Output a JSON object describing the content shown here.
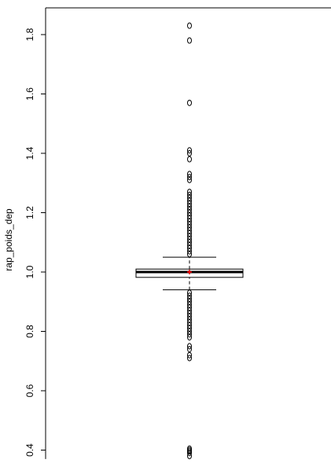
{
  "chart_data": {
    "type": "box",
    "ylabel": "rap_poids_dep",
    "ylim": [
      0.37,
      1.88
    ],
    "y_ticks": [
      0.4,
      0.6,
      0.8,
      1.0,
      1.2,
      1.4,
      1.6,
      1.8
    ],
    "y_tick_labels": [
      "0.4",
      "0.6",
      "0.8",
      "1.0",
      "1.2",
      "1.4",
      "1.6",
      "1.8"
    ],
    "box": {
      "whisker_low": 0.94,
      "q1": 0.982,
      "median": 1.0,
      "q3": 1.01,
      "whisker_high": 1.05,
      "mean": 1.0
    },
    "outliers": [
      0.38,
      0.39,
      0.395,
      0.4,
      0.405,
      0.71,
      0.72,
      0.74,
      0.75,
      0.78,
      0.79,
      0.8,
      0.81,
      0.82,
      0.83,
      0.84,
      0.85,
      0.86,
      0.87,
      0.88,
      0.89,
      0.9,
      0.91,
      0.92,
      0.93,
      1.06,
      1.07,
      1.08,
      1.09,
      1.1,
      1.11,
      1.12,
      1.13,
      1.14,
      1.15,
      1.16,
      1.17,
      1.18,
      1.19,
      1.2,
      1.21,
      1.22,
      1.23,
      1.24,
      1.25,
      1.26,
      1.27,
      1.31,
      1.32,
      1.33,
      1.38,
      1.4,
      1.41,
      1.57,
      1.78,
      1.83
    ],
    "colors": {
      "box": "#000000",
      "mean_marker": "#ff0000",
      "median_line": "#000000"
    }
  }
}
